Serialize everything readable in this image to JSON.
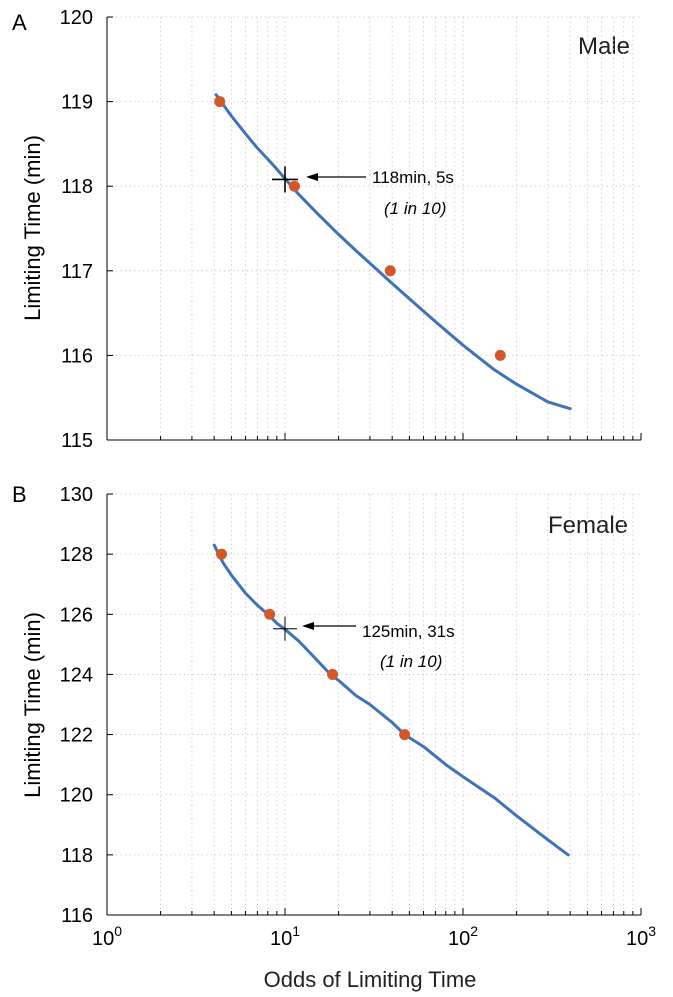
{
  "figure": {
    "xlabel": "Odds of Limiting Time",
    "colors": {
      "curve": "#3f73b9",
      "points": "#d4572a",
      "axis": "#000000",
      "grid": "#c8c8c8"
    }
  },
  "chart_data": [
    {
      "type": "line",
      "panel_label": "A",
      "inset_title": "Male",
      "xlabel": "Odds of Limiting Time",
      "ylabel": "Limiting Time (min)",
      "xscale": "log",
      "xlim": [
        1,
        1000
      ],
      "ylim": [
        115,
        120
      ],
      "x_ticks": [
        1,
        10,
        100,
        1000
      ],
      "y_ticks": [
        115,
        116,
        117,
        118,
        119,
        120
      ],
      "grid": true,
      "series": [
        {
          "kind": "line",
          "x": [
            4.1,
            5,
            6,
            7,
            8,
            9,
            10,
            12,
            15,
            20,
            25,
            30,
            40,
            50,
            70,
            100,
            150,
            200,
            300,
            400
          ],
          "y": [
            119.08,
            118.83,
            118.62,
            118.45,
            118.32,
            118.2,
            118.09,
            117.9,
            117.69,
            117.43,
            117.24,
            117.09,
            116.85,
            116.67,
            116.4,
            116.12,
            115.83,
            115.66,
            115.45,
            115.37
          ]
        },
        {
          "kind": "points",
          "x": [
            4.3,
            11.3,
            39,
            162
          ],
          "y": [
            119,
            118,
            117,
            116
          ]
        }
      ],
      "marker": {
        "x": 10,
        "y": 118.08
      },
      "annotation": {
        "line1": "118min, 5s",
        "line2": "(1 in 10)"
      }
    },
    {
      "type": "line",
      "panel_label": "B",
      "inset_title": "Female",
      "xlabel": "Odds of Limiting Time",
      "ylabel": "Limiting Time (min)",
      "xscale": "log",
      "xlim": [
        1,
        1000
      ],
      "ylim": [
        116,
        130
      ],
      "x_ticks": [
        1,
        10,
        100,
        1000
      ],
      "y_ticks": [
        116,
        118,
        120,
        122,
        124,
        126,
        128,
        130
      ],
      "grid": true,
      "series": [
        {
          "kind": "line",
          "x": [
            4,
            4.5,
            5,
            6,
            7,
            8,
            9,
            10,
            12,
            15,
            18,
            20,
            25,
            30,
            40,
            47,
            60,
            80,
            100,
            150,
            200,
            300,
            390
          ],
          "y": [
            128.3,
            127.7,
            127.3,
            126.7,
            126.3,
            126,
            125.7,
            125.5,
            125.1,
            124.5,
            124,
            123.8,
            123.3,
            123,
            122.4,
            122,
            121.6,
            121,
            120.6,
            119.9,
            119.3,
            118.5,
            118
          ]
        },
        {
          "kind": "points",
          "x": [
            4.4,
            8.2,
            18.5,
            47
          ],
          "y": [
            128,
            126,
            124,
            122
          ]
        }
      ],
      "marker": {
        "x": 10,
        "y": 125.52
      },
      "annotation": {
        "line1": "125min, 31s",
        "line2": "(1 in 10)"
      }
    }
  ]
}
